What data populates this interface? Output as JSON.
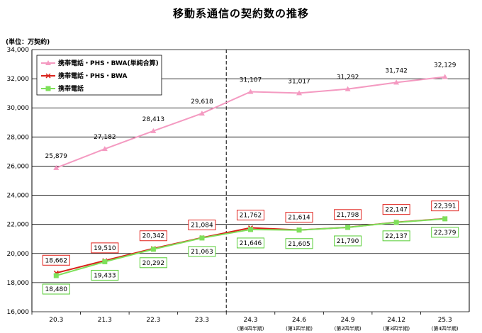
{
  "chart_data": {
    "type": "line",
    "title": "移動系通信の契約数の推移",
    "unit_label": "(単位：万契約)",
    "categories": [
      "20.3",
      "21.3",
      "22.3",
      "23.3",
      "24.3",
      "24.6",
      "24.9",
      "24.12",
      "25.3"
    ],
    "category_sublabels": [
      "",
      "",
      "",
      "",
      "(第4四半期)",
      "(第1四半期)",
      "(第2四半期)",
      "(第3四半期)",
      "(第4四半期)"
    ],
    "ylim": [
      16000,
      34000
    ],
    "yticks": [
      "16,000",
      "18,000",
      "20,000",
      "22,000",
      "24,000",
      "26,000",
      "28,000",
      "30,000",
      "32,000",
      "34,000"
    ],
    "grid": true,
    "legend_position": "top-left",
    "divider_after_category": "23.3",
    "series": [
      {
        "name": "携帯電話・PHS・BWA(単純合算)",
        "color": "#f49ac1",
        "marker": "triangle",
        "values": [
          25879,
          27182,
          28413,
          29618,
          31107,
          31017,
          31292,
          31742,
          32129
        ],
        "labels": [
          "25,879",
          "27,182",
          "28,413",
          "29,618",
          "31,107",
          "31,017",
          "31,292",
          "31,742",
          "32,129"
        ]
      },
      {
        "name": "携帯電話・PHS・BWA",
        "color": "#d9211a",
        "marker": "x",
        "values": [
          18662,
          19510,
          20342,
          21084,
          21762,
          21614,
          21798,
          22147,
          22391
        ],
        "labels": [
          "18,662",
          "19,510",
          "20,342",
          "21,084",
          "21,762",
          "21,614",
          "21,798",
          "22,147",
          "22,391"
        ]
      },
      {
        "name": "携帯電話",
        "color": "#7ee05a",
        "marker": "square",
        "values": [
          18480,
          19433,
          20292,
          21063,
          21646,
          21605,
          21790,
          22137,
          22379
        ],
        "labels": [
          "18,480",
          "19,433",
          "20,292",
          "21,063",
          "21,646",
          "21,605",
          "21,790",
          "22,137",
          "22,379"
        ]
      }
    ]
  }
}
